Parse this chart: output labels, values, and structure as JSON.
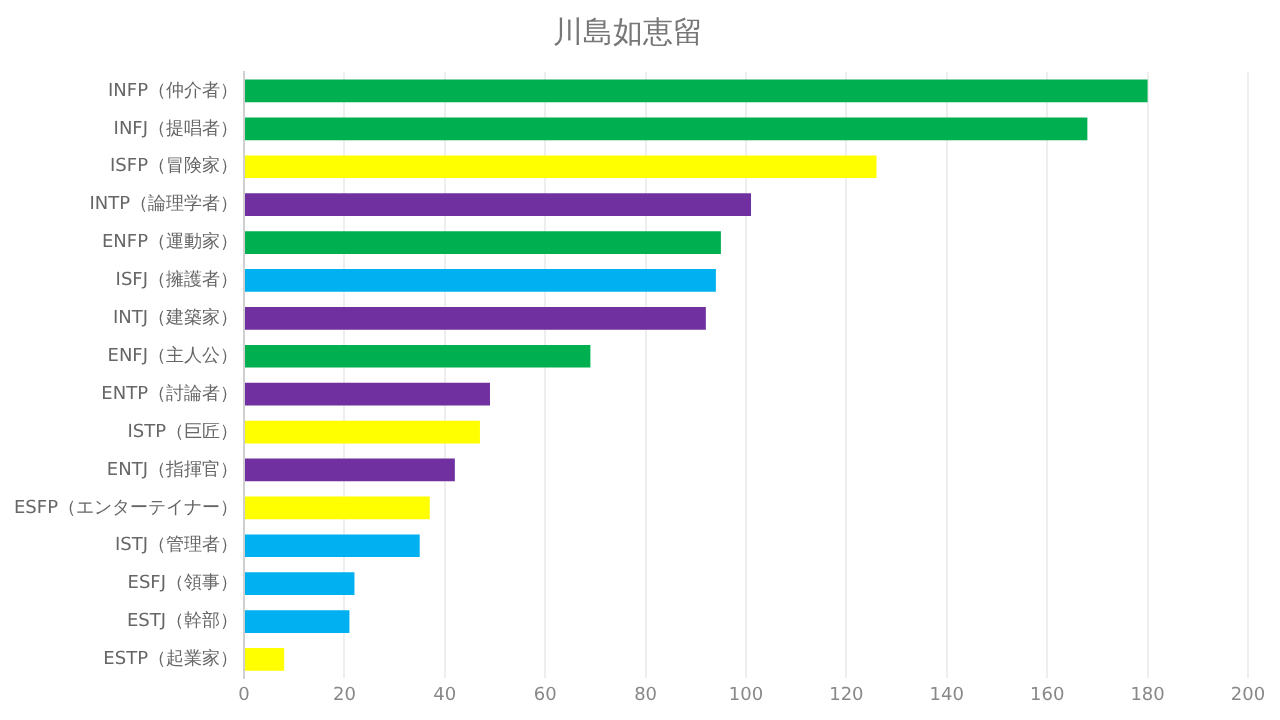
{
  "chart_data": {
    "type": "bar",
    "orientation": "horizontal",
    "title": "川島如恵留",
    "categories": [
      "INFP（仲介者）",
      "INFJ（提唱者）",
      "ISFP（冒険家）",
      "INTP（論理学者）",
      "ENFP（運動家）",
      "ISFJ（擁護者）",
      "INTJ（建築家）",
      "ENFJ（主人公）",
      "ENTP（討論者）",
      "ISTP（巨匠）",
      "ENTJ（指揮官）",
      "ESFP（エンターテイナー）",
      "ISTJ（管理者）",
      "ESFJ（領事）",
      "ESTJ（幹部）",
      "ESTP（起業家）"
    ],
    "values": [
      180,
      168,
      126,
      101,
      95,
      94,
      92,
      69,
      49,
      47,
      42,
      37,
      35,
      22,
      21,
      8
    ],
    "colors": [
      "#00b050",
      "#00b050",
      "#ffff00",
      "#7030a0",
      "#00b050",
      "#00b0f0",
      "#7030a0",
      "#00b050",
      "#7030a0",
      "#ffff00",
      "#7030a0",
      "#ffff00",
      "#00b0f0",
      "#00b0f0",
      "#00b0f0",
      "#ffff00"
    ],
    "xlim": [
      0,
      200
    ],
    "xticks": [
      0,
      20,
      40,
      60,
      80,
      100,
      120,
      140,
      160,
      180,
      200
    ],
    "grid": "x"
  }
}
